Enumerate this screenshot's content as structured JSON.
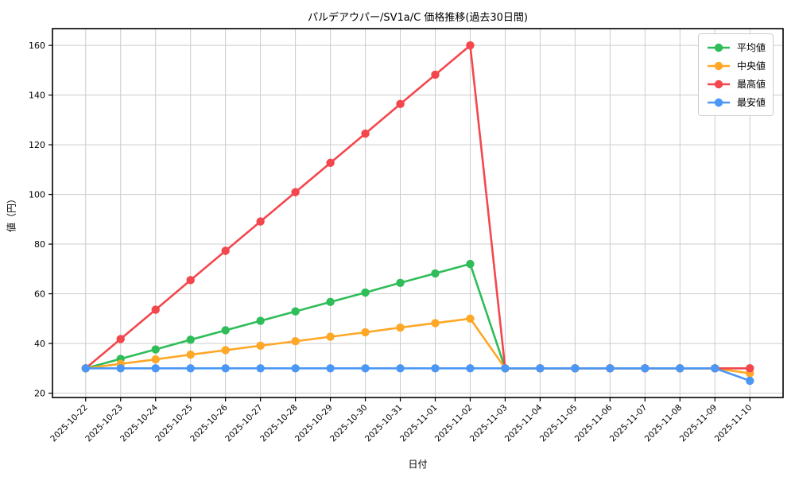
{
  "chart_data": {
    "type": "line",
    "title": "パルデアウパー/SV1a/C 価格推移(過去30日間)",
    "xlabel": "日付",
    "ylabel": "値（円）",
    "x": [
      "2025-10-22",
      "2025-10-23",
      "2025-10-24",
      "2025-10-25",
      "2025-10-26",
      "2025-10-27",
      "2025-10-28",
      "2025-10-29",
      "2025-10-30",
      "2025-10-31",
      "2025-11-01",
      "2025-11-02",
      "2025-11-03",
      "2025-11-04",
      "2025-11-05",
      "2025-11-06",
      "2025-11-07",
      "2025-11-08",
      "2025-11-09",
      "2025-11-10"
    ],
    "yticks": [
      20,
      40,
      60,
      80,
      100,
      120,
      140,
      160
    ],
    "ylim": [
      18.25,
      166.75
    ],
    "grid": true,
    "legend_position": "upper right",
    "series": [
      {
        "name": "平均値",
        "color": "#2EBD59",
        "values": [
          30,
          33.8,
          37.6,
          41.5,
          45.3,
          49.1,
          52.9,
          56.7,
          60.5,
          64.4,
          68.2,
          72,
          30,
          30,
          30,
          30,
          30,
          30,
          30,
          30
        ]
      },
      {
        "name": "中央値",
        "color": "#FFA726",
        "values": [
          30,
          31.8,
          33.6,
          35.5,
          37.3,
          39.1,
          40.9,
          42.7,
          44.5,
          46.4,
          48.2,
          50,
          30,
          30,
          30,
          30,
          30,
          30,
          30,
          28
        ]
      },
      {
        "name": "最高値",
        "color": "#F4474D",
        "values": [
          30,
          41.8,
          53.6,
          65.5,
          77.3,
          89.1,
          100.9,
          112.7,
          124.5,
          136.4,
          148.2,
          160,
          30,
          30,
          30,
          30,
          30,
          30,
          30,
          30
        ]
      },
      {
        "name": "最安値",
        "color": "#4B97F5",
        "values": [
          30,
          30,
          30,
          30,
          30,
          30,
          30,
          30,
          30,
          30,
          30,
          30,
          30,
          30,
          30,
          30,
          30,
          30,
          30,
          25
        ]
      }
    ]
  }
}
